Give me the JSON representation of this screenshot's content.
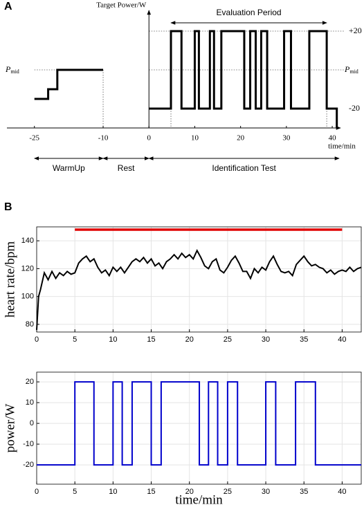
{
  "chart_data": [
    {
      "type": "line",
      "panel": "A",
      "y_label": "Target Power/W",
      "x_label": "time/min",
      "xlim": [
        -31,
        41.5
      ],
      "ylim": [
        -30,
        30
      ],
      "xticks": [
        -25,
        -10,
        0,
        10,
        20,
        30,
        40
      ],
      "yticks": [
        {
          "value": 20,
          "label": "+20"
        },
        {
          "value": 0,
          "label": "P",
          "sub": "mid"
        },
        -20
      ],
      "series": [
        {
          "color": "#000000",
          "x": [
            -25,
            -22,
            -22,
            -20,
            -20,
            -10
          ],
          "values": [
            -15,
            -15,
            -10,
            -10,
            0,
            0
          ]
        },
        {
          "color": "#000000",
          "x": [
            0,
            4.8,
            4.8,
            7.1,
            7.1,
            10,
            10,
            10.9,
            10.9,
            13.3,
            13.3,
            14.2,
            14.2,
            15.8,
            15.8,
            20.8,
            20.8,
            22.1,
            22.1,
            23.3,
            23.3,
            24.5,
            24.5,
            25.8,
            25.8,
            29.5,
            29.5,
            31,
            31,
            35,
            35,
            38.8,
            38.8,
            41,
            41
          ],
          "values": [
            -20,
            -20,
            20,
            20,
            -20,
            -20,
            20,
            20,
            -20,
            -20,
            20,
            20,
            -20,
            -20,
            20,
            20,
            -20,
            -20,
            20,
            20,
            -20,
            -20,
            20,
            20,
            -20,
            -20,
            20,
            20,
            -20,
            -20,
            20,
            20,
            -20,
            -20,
            -30
          ]
        }
      ],
      "evaluation_period": {
        "label": "Evaluation Period",
        "start": 4.8,
        "end": 38.8
      },
      "phases": [
        {
          "label": "WarmUp",
          "start": -25,
          "end": -10
        },
        {
          "label": "Rest",
          "start": -10,
          "end": 0
        },
        {
          "label": "Identification Test",
          "start": 0,
          "end": 41.5
        }
      ]
    },
    {
      "type": "line",
      "panel": "B",
      "y_label": "heart rate/bpm",
      "xlim": [
        0,
        42.5
      ],
      "ylim": [
        74.5,
        150
      ],
      "xticks": [
        0,
        5,
        10,
        15,
        20,
        25,
        30,
        35,
        40
      ],
      "yticks": [
        80,
        100,
        120,
        140
      ],
      "grid": true,
      "series": [
        {
          "color": "#000000",
          "x": [
            0,
            0.25,
            0.5,
            1,
            1.5,
            2,
            2.5,
            3,
            3.5,
            4,
            4.5,
            5,
            5.5,
            6,
            6.5,
            7,
            7.5,
            8,
            8.5,
            9,
            9.5,
            10,
            10.5,
            11,
            11.5,
            12,
            12.5,
            13,
            13.5,
            14,
            14.5,
            15,
            15.5,
            16,
            16.5,
            17,
            17.5,
            18,
            18.5,
            19,
            19.5,
            20,
            20.5,
            21,
            21.5,
            22,
            22.5,
            23,
            23.5,
            24,
            24.5,
            25,
            25.5,
            26,
            26.5,
            27,
            27.5,
            28,
            28.5,
            29,
            29.5,
            30,
            30.5,
            31,
            31.5,
            32,
            32.5,
            33,
            33.5,
            34,
            34.5,
            35,
            35.5,
            36,
            36.5,
            37,
            37.5,
            38,
            38.5,
            39,
            39.5,
            40,
            40.5,
            41,
            41.5,
            42,
            42.5
          ],
          "values": [
            76,
            100,
            105,
            117,
            112,
            118,
            113,
            117,
            115,
            118,
            116,
            117,
            124,
            127,
            129,
            125,
            127,
            121,
            117,
            119,
            115,
            121,
            118,
            121,
            117,
            121,
            125,
            127,
            125,
            128,
            124,
            127,
            122,
            124,
            120,
            125,
            127,
            130,
            127,
            131,
            128,
            130,
            127,
            133,
            128,
            122,
            120,
            125,
            127,
            119,
            117,
            121,
            126,
            129,
            124,
            118,
            118,
            113,
            120,
            117,
            121,
            119,
            125,
            129,
            123,
            118,
            117,
            118,
            115,
            123,
            126,
            129,
            125,
            122,
            123,
            121,
            120,
            117,
            119,
            116,
            118,
            119,
            118,
            121,
            118,
            120,
            121
          ]
        },
        {
          "color": "#e00000",
          "x": [
            5,
            40
          ],
          "values": [
            148,
            148
          ]
        }
      ]
    },
    {
      "type": "line",
      "y_label": "power/W",
      "x_label": "time/min",
      "xlim": [
        0,
        42.5
      ],
      "ylim": [
        -29.3,
        24.7
      ],
      "xticks": [
        0,
        5,
        10,
        15,
        20,
        25,
        30,
        35,
        40
      ],
      "yticks": [
        -20,
        -10,
        0,
        10,
        20
      ],
      "grid": true,
      "series": [
        {
          "color": "#0000cc",
          "x": [
            0,
            5,
            5,
            7.5,
            7.5,
            10,
            10,
            11.2,
            11.2,
            12.5,
            12.5,
            15,
            15,
            16.3,
            16.3,
            21.3,
            21.3,
            22.5,
            22.5,
            23.7,
            23.7,
            25,
            25,
            26.3,
            26.3,
            30,
            30,
            31.3,
            31.3,
            33.9,
            33.9,
            36.5,
            36.5,
            42.5
          ],
          "values": [
            -20,
            -20,
            20,
            20,
            -20,
            -20,
            20,
            20,
            -20,
            -20,
            20,
            20,
            -20,
            -20,
            20,
            20,
            -20,
            -20,
            20,
            20,
            -20,
            -20,
            20,
            20,
            -20,
            -20,
            20,
            20,
            -20,
            -20,
            20,
            20,
            -20,
            -20
          ]
        }
      ]
    }
  ]
}
